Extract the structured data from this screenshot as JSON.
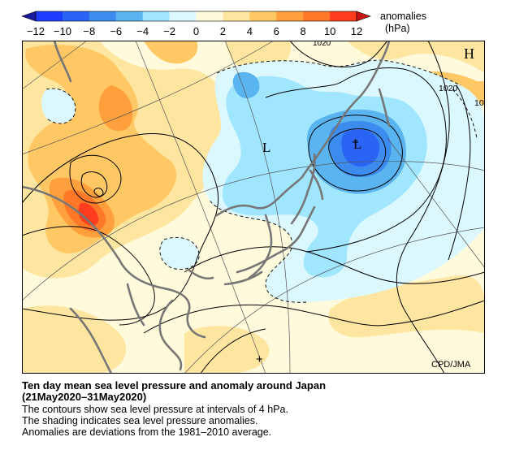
{
  "legend": {
    "title": "anomalies",
    "unit": "(hPa)",
    "ticks": [
      "−12",
      "−10",
      "−8",
      "−6",
      "−4",
      "−2",
      "0",
      "2",
      "4",
      "6",
      "8",
      "10",
      "12"
    ],
    "bin_colors": [
      "#1e3cff",
      "#2a64f5",
      "#3c8cf0",
      "#5ab4f0",
      "#a0e6ff",
      "#dcf8ff",
      "#fffadc",
      "#ffe6a0",
      "#ffc864",
      "#ffa03c",
      "#ff7828",
      "#ff3c1e"
    ]
  },
  "map": {
    "credit": "CPD/JMA",
    "symbols": {
      "high": "H",
      "low1": "L",
      "low2": "L",
      "center_plus": "+",
      "center_plus2": "+"
    },
    "contour_labels": {
      "label_1020_top": "1020",
      "label_1020_right": "1020",
      "label_10_right": "10"
    }
  },
  "caption": {
    "title": "Ten day mean sea level pressure and anomaly around Japan",
    "period": "(21May2020–31May2020)",
    "line1": "The contours show sea level pressure at intervals of 4 hPa.",
    "line2": "The shading indicates sea level pressure anomalies.",
    "line3": "Anomalies are deviations from the 1981–2010 average."
  }
}
